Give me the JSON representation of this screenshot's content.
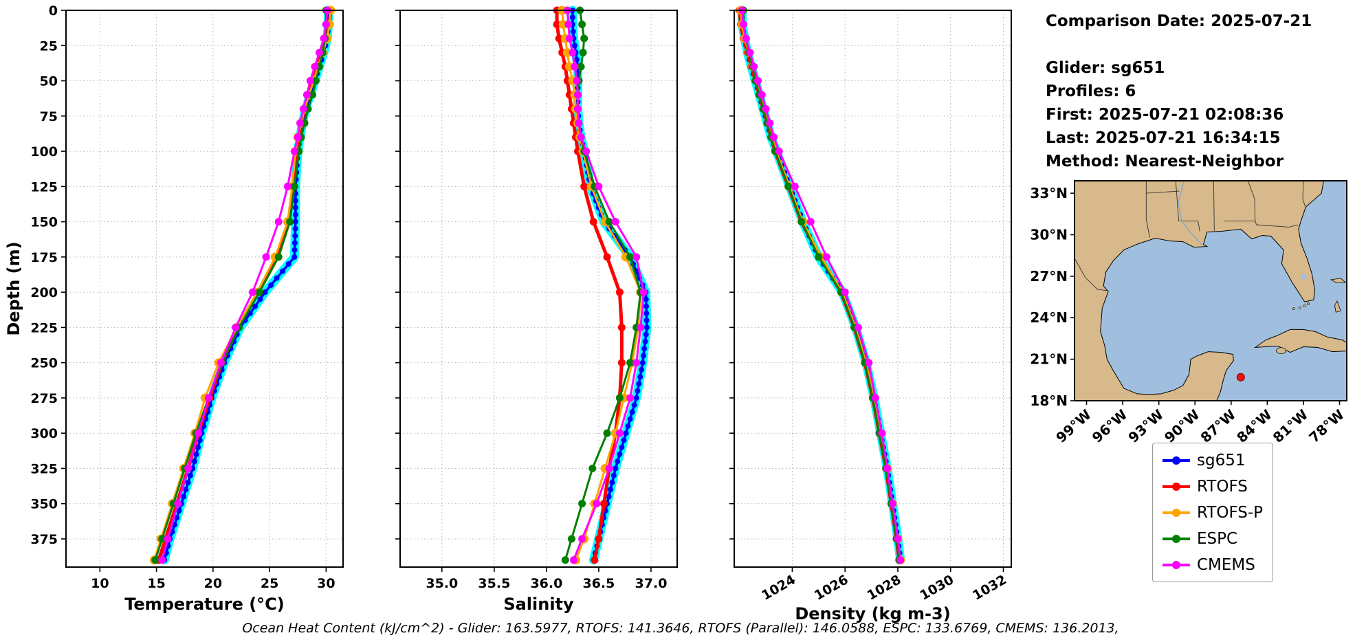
{
  "info": {
    "comparison_date": "Comparison Date: 2025-07-21",
    "glider": "Glider: sg651",
    "profiles": "Profiles: 6",
    "first": "First: 2025-07-21 02:08:36",
    "last": "Last: 2025-07-21 16:34:15",
    "method": "Method: Nearest-Neighbor"
  },
  "caption": "Ocean Heat Content (kJ/cm^2) - Glider: 163.5977,  RTOFS: 141.3646,  RTOFS (Parallel): 146.0588,  ESPC: 133.6769,  CMEMS: 136.2013,",
  "legend": {
    "entries": [
      {
        "label": "sg651",
        "color": "#0000ff"
      },
      {
        "label": "RTOFS",
        "color": "#ff0000"
      },
      {
        "label": "RTOFS-P",
        "color": "#ffa500"
      },
      {
        "label": "ESPC",
        "color": "#008000"
      },
      {
        "label": "CMEMS",
        "color": "#ff00ff"
      }
    ]
  },
  "chart_data": [
    {
      "type": "line",
      "panel": "temperature",
      "xlabel": "Temperature (°C)",
      "ylabel": "Depth (m)",
      "xlim": [
        7,
        31.5
      ],
      "xticks": [
        10,
        15,
        20,
        25,
        30
      ],
      "xtick_labels": [
        "10",
        "15",
        "20",
        "25",
        "30"
      ],
      "xtick_rotation": 0,
      "ylim": [
        395,
        0
      ],
      "yticks": [
        0,
        25,
        50,
        75,
        100,
        125,
        150,
        175,
        200,
        225,
        250,
        275,
        300,
        325,
        350,
        375
      ],
      "grid": true,
      "depths": [
        0,
        10,
        20,
        30,
        40,
        50,
        60,
        70,
        80,
        90,
        100,
        125,
        150,
        175,
        200,
        225,
        250,
        275,
        300,
        325,
        350,
        375,
        390
      ],
      "series": [
        {
          "name": "sg651",
          "color": "#0000ff",
          "lw": 3.5,
          "ms": 4,
          "dense": true,
          "envelope": "#00ffff",
          "values": [
            30.2,
            30.2,
            30.1,
            29.8,
            29.4,
            29.0,
            28.6,
            28.2,
            27.9,
            27.7,
            27.5,
            27.3,
            27.3,
            27.2,
            24.6,
            22.4,
            21.0,
            19.9,
            19.0,
            18.2,
            17.2,
            16.2,
            15.7
          ]
        },
        {
          "name": "RTOFS",
          "color": "#ff0000",
          "lw": 5,
          "ms": 5.5,
          "values": [
            30.4,
            30.3,
            30.0,
            29.6,
            29.2,
            28.8,
            28.4,
            28.1,
            27.8,
            27.6,
            27.4,
            27.1,
            26.7,
            25.7,
            24.0,
            22.2,
            20.8,
            19.7,
            18.7,
            17.8,
            16.8,
            15.8,
            15.2
          ]
        },
        {
          "name": "RTOFS-P",
          "color": "#ffa500",
          "lw": 3,
          "ms": 6.5,
          "values": [
            30.4,
            30.3,
            30.1,
            29.7,
            29.3,
            28.9,
            28.5,
            28.1,
            27.8,
            27.5,
            27.3,
            27.0,
            26.6,
            25.5,
            23.9,
            22.1,
            20.5,
            19.3,
            18.4,
            17.4,
            16.4,
            15.4,
            14.8
          ]
        },
        {
          "name": "ESPC",
          "color": "#008000",
          "lw": 3,
          "ms": 5.5,
          "values": [
            30.0,
            30.0,
            29.9,
            29.7,
            29.4,
            29.1,
            28.8,
            28.4,
            28.1,
            27.8,
            27.6,
            27.2,
            26.8,
            25.8,
            24.1,
            22.3,
            20.8,
            19.6,
            18.5,
            17.5,
            16.5,
            15.5,
            14.9
          ]
        },
        {
          "name": "CMEMS",
          "color": "#ff00ff",
          "lw": 3,
          "ms": 5.5,
          "values": [
            30.1,
            30.0,
            29.8,
            29.4,
            29.0,
            28.6,
            28.3,
            28.0,
            27.7,
            27.5,
            27.2,
            26.6,
            25.8,
            24.7,
            23.5,
            22.0,
            20.7,
            19.6,
            18.7,
            17.8,
            16.9,
            16.0,
            15.5
          ]
        }
      ]
    },
    {
      "type": "line",
      "panel": "salinity",
      "xlabel": "Salinity",
      "ylabel": "Depth (m)",
      "xlim": [
        34.6,
        37.25
      ],
      "xticks": [
        35.0,
        35.5,
        36.0,
        36.5,
        37.0
      ],
      "xtick_labels": [
        "35.0",
        "35.5",
        "36.0",
        "36.5",
        "37.0"
      ],
      "xtick_rotation": 0,
      "ylim": [
        395,
        0
      ],
      "yticks": [
        0,
        25,
        50,
        75,
        100,
        125,
        150,
        175,
        200,
        225,
        250,
        275,
        300,
        325,
        350,
        375
      ],
      "grid": true,
      "depths": [
        0,
        10,
        20,
        30,
        40,
        50,
        60,
        70,
        80,
        90,
        100,
        125,
        150,
        175,
        200,
        225,
        250,
        275,
        300,
        325,
        350,
        375,
        390
      ],
      "series": [
        {
          "name": "sg651",
          "color": "#0000ff",
          "lw": 3.5,
          "ms": 4,
          "dense": true,
          "envelope": "#00ffff",
          "values": [
            36.25,
            36.25,
            36.26,
            36.28,
            36.3,
            36.3,
            36.3,
            36.3,
            36.31,
            36.33,
            36.36,
            36.42,
            36.55,
            36.8,
            36.95,
            36.96,
            36.92,
            36.86,
            36.76,
            36.66,
            36.58,
            36.5,
            36.45
          ]
        },
        {
          "name": "RTOFS",
          "color": "#ff0000",
          "lw": 5,
          "ms": 5.5,
          "values": [
            36.1,
            36.1,
            36.12,
            36.15,
            36.18,
            36.2,
            36.22,
            36.24,
            36.26,
            36.28,
            36.3,
            36.36,
            36.45,
            36.58,
            36.7,
            36.72,
            36.72,
            36.7,
            36.66,
            36.6,
            36.55,
            36.5,
            36.46
          ]
        },
        {
          "name": "RTOFS-P",
          "color": "#ffa500",
          "lw": 3,
          "ms": 6.5,
          "values": [
            36.15,
            36.16,
            36.18,
            36.2,
            36.22,
            36.25,
            36.27,
            36.28,
            36.3,
            36.32,
            36.35,
            36.43,
            36.56,
            36.76,
            36.9,
            36.88,
            36.82,
            36.74,
            36.66,
            36.56,
            36.46,
            36.36,
            36.28
          ]
        },
        {
          "name": "ESPC",
          "color": "#008000",
          "lw": 3,
          "ms": 5.5,
          "values": [
            36.32,
            36.34,
            36.36,
            36.35,
            36.33,
            36.31,
            36.3,
            36.3,
            36.31,
            36.33,
            36.36,
            36.46,
            36.6,
            36.8,
            36.9,
            36.86,
            36.8,
            36.7,
            36.58,
            36.44,
            36.34,
            36.24,
            36.18
          ]
        },
        {
          "name": "CMEMS",
          "color": "#ff00ff",
          "lw": 3,
          "ms": 5.5,
          "values": [
            36.2,
            36.21,
            36.22,
            36.25,
            36.27,
            36.29,
            36.3,
            36.3,
            36.31,
            36.33,
            36.38,
            36.5,
            36.66,
            36.86,
            36.93,
            36.9,
            36.86,
            36.8,
            36.7,
            36.6,
            36.48,
            36.34,
            36.26
          ]
        }
      ]
    },
    {
      "type": "line",
      "panel": "density",
      "xlabel": "Density (kg m-3)",
      "ylabel": "Depth (m)",
      "xlim": [
        1021.8,
        1032.3
      ],
      "xticks": [
        1024,
        1026,
        1028,
        1030,
        1032
      ],
      "xtick_labels": [
        "1024",
        "1026",
        "1028",
        "1030",
        "1032"
      ],
      "xtick_rotation": 30,
      "ylim": [
        395,
        0
      ],
      "yticks": [
        0,
        25,
        50,
        75,
        100,
        125,
        150,
        175,
        200,
        225,
        250,
        275,
        300,
        325,
        350,
        375
      ],
      "grid": true,
      "depths": [
        0,
        10,
        20,
        30,
        40,
        50,
        60,
        70,
        80,
        90,
        100,
        125,
        150,
        175,
        200,
        225,
        250,
        275,
        300,
        325,
        350,
        375,
        390
      ],
      "series": [
        {
          "name": "sg651",
          "color": "#0000ff",
          "lw": 3.5,
          "ms": 4,
          "dense": true,
          "envelope": "#00ffff",
          "values": [
            1022.1,
            1022.1,
            1022.2,
            1022.3,
            1022.45,
            1022.6,
            1022.75,
            1022.9,
            1023.05,
            1023.2,
            1023.4,
            1023.9,
            1024.4,
            1025.0,
            1025.9,
            1026.4,
            1026.8,
            1027.1,
            1027.35,
            1027.6,
            1027.8,
            1028.0,
            1028.1
          ]
        },
        {
          "name": "RTOFS",
          "color": "#ff0000",
          "lw": 5,
          "ms": 5.5,
          "values": [
            1022.0,
            1022.05,
            1022.15,
            1022.3,
            1022.45,
            1022.6,
            1022.75,
            1022.9,
            1023.05,
            1023.2,
            1023.35,
            1023.85,
            1024.35,
            1025.05,
            1025.85,
            1026.35,
            1026.75,
            1027.05,
            1027.3,
            1027.55,
            1027.75,
            1027.95,
            1028.05
          ]
        },
        {
          "name": "RTOFS-P",
          "color": "#ffa500",
          "lw": 3,
          "ms": 6.5,
          "values": [
            1022.05,
            1022.1,
            1022.2,
            1022.35,
            1022.5,
            1022.65,
            1022.8,
            1022.95,
            1023.1,
            1023.25,
            1023.4,
            1023.9,
            1024.4,
            1025.1,
            1025.9,
            1026.4,
            1026.8,
            1027.1,
            1027.35,
            1027.6,
            1027.8,
            1028.0,
            1028.1
          ]
        },
        {
          "name": "ESPC",
          "color": "#008000",
          "lw": 3,
          "ms": 5.5,
          "values": [
            1022.15,
            1022.15,
            1022.25,
            1022.35,
            1022.5,
            1022.6,
            1022.75,
            1022.9,
            1023.05,
            1023.2,
            1023.35,
            1023.85,
            1024.35,
            1025.0,
            1025.85,
            1026.35,
            1026.75,
            1027.05,
            1027.3,
            1027.55,
            1027.75,
            1027.95,
            1028.05
          ]
        },
        {
          "name": "CMEMS",
          "color": "#ff00ff",
          "lw": 3,
          "ms": 5.5,
          "values": [
            1022.1,
            1022.15,
            1022.25,
            1022.4,
            1022.55,
            1022.7,
            1022.85,
            1023.0,
            1023.15,
            1023.3,
            1023.5,
            1024.1,
            1024.7,
            1025.3,
            1026.0,
            1026.5,
            1026.9,
            1027.15,
            1027.4,
            1027.6,
            1027.8,
            1028.0,
            1028.1
          ]
        }
      ]
    },
    {
      "type": "map",
      "region": "Gulf of Mexico",
      "extent": {
        "lon": [
          -100,
          -77.4
        ],
        "lat": [
          18,
          33.9
        ]
      },
      "lat_vals": [
        33,
        30,
        27,
        24,
        21,
        18
      ],
      "lat_labels": [
        "33°N",
        "30°N",
        "27°N",
        "24°N",
        "21°N",
        "18°N"
      ],
      "lon_vals": [
        -99,
        -96,
        -93,
        -90,
        -87,
        -84,
        -81,
        -78
      ],
      "lon_labels": [
        "99°W",
        "96°W",
        "93°W",
        "90°W",
        "87°W",
        "84°W",
        "81°W",
        "78°W"
      ],
      "land_color": "#d8b98b",
      "water_color": "#a0bfdf",
      "marker": {
        "lon": -86.2,
        "lat": 19.7,
        "color": "#ee1111"
      }
    }
  ]
}
